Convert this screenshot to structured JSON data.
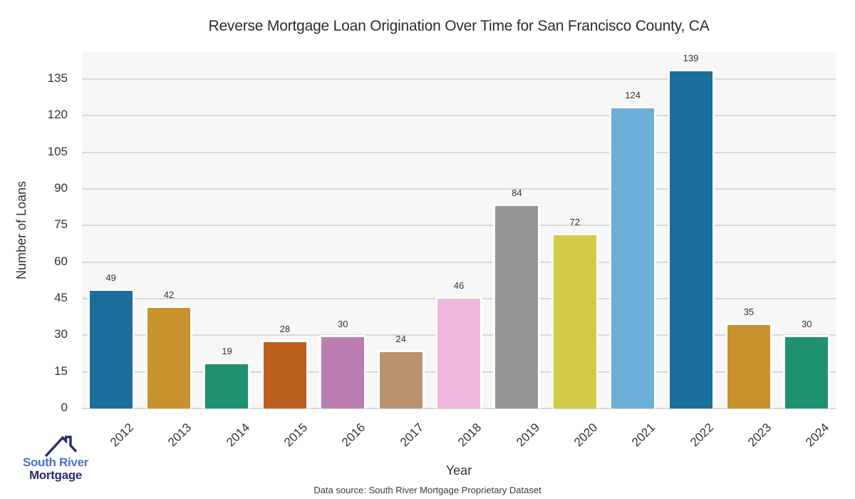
{
  "title": "Reverse Mortgage Loan Origination Over Time for San Francisco County, CA",
  "footer": {
    "data_source": "Data source: South River Mortgage Proprietary Dataset"
  },
  "logo": {
    "line1": "South River",
    "line2": "Mortgage",
    "colors": {
      "line1": "#4e70c0",
      "line2": "#2b2d6b",
      "roof": "#2b2d6b"
    }
  },
  "chart_data": {
    "type": "bar",
    "title": "Reverse Mortgage Loan Origination Over Time for San Francisco County, CA",
    "xlabel": "Year",
    "ylabel": "Number of Loans",
    "categories": [
      "2012",
      "2013",
      "2014",
      "2015",
      "2016",
      "2017",
      "2018",
      "2019",
      "2020",
      "2021",
      "2022",
      "2023",
      "2024"
    ],
    "values": [
      49,
      42,
      19,
      28,
      30,
      24,
      46,
      84,
      72,
      124,
      139,
      35,
      30
    ],
    "bar_colors": [
      "#1c6e9c",
      "#c9922f",
      "#1d9170",
      "#bb611d",
      "#bc7eb2",
      "#bb926e",
      "#f0b7de",
      "#969696",
      "#d3cb48",
      "#6bafd8",
      "#1c6e9c",
      "#c9922f",
      "#1d9170"
    ],
    "yticks": [
      0,
      15,
      30,
      45,
      60,
      75,
      90,
      105,
      120,
      135
    ],
    "ylim": [
      0,
      146
    ],
    "grid": "horizontal",
    "legend": "none",
    "value_labels": true,
    "panel_bg": "#f7f7f7",
    "gridline_color": "#d7d7d7",
    "bar_edge_color": "#ffffff",
    "x_tick_rotation_deg": 45
  }
}
